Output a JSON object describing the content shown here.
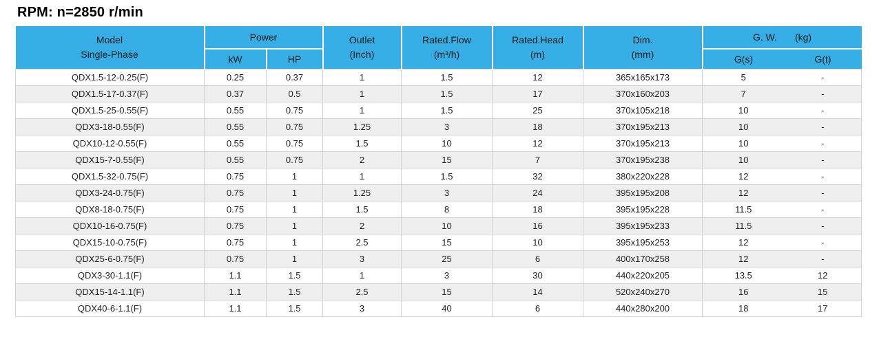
{
  "title": "RPM: n=2850 r/min",
  "colors": {
    "header_bg": "#36ade4",
    "header_text": "#1b1b1b",
    "row_alt": "#efefef",
    "grid_line": "#d2d2d2",
    "body_text": "#1f1f1f"
  },
  "table": {
    "col_keys": [
      "model",
      "kw",
      "hp",
      "outlet",
      "flow",
      "head",
      "dim",
      "gs",
      "gt"
    ],
    "headers": {
      "model_line1": "Model",
      "model_line2": "Single-Phase",
      "power": "Power",
      "kw": "kW",
      "hp": "HP",
      "outlet_line1": "Outlet",
      "outlet_line2": "(Inch)",
      "flow_line1": "Rated.Flow",
      "flow_line2": "(m³/h)",
      "head_line1": "Rated.Head",
      "head_line2": "(m)",
      "dim_line1": "Dim.",
      "dim_line2": "(mm)",
      "gw": "G. W.",
      "gw_unit": "(kg)",
      "gs": "G(s)",
      "gt": "G(t)"
    },
    "rows": [
      [
        "QDX1.5-12-0.25(F)",
        "0.25",
        "0.37",
        "1",
        "1.5",
        "12",
        "365x165x173",
        "5",
        "-"
      ],
      [
        "QDX1.5-17-0.37(F)",
        "0.37",
        "0.5",
        "1",
        "1.5",
        "17",
        "370x160x203",
        "7",
        "-"
      ],
      [
        "QDX1.5-25-0.55(F)",
        "0.55",
        "0.75",
        "1",
        "1.5",
        "25",
        "370x105x218",
        "10",
        "-"
      ],
      [
        "QDX3-18-0.55(F)",
        "0.55",
        "0.75",
        "1.25",
        "3",
        "18",
        "370x195x213",
        "10",
        "-"
      ],
      [
        "QDX10-12-0.55(F)",
        "0.55",
        "0.75",
        "1.5",
        "10",
        "12",
        "370x195x213",
        "10",
        "-"
      ],
      [
        "QDX15-7-0.55(F)",
        "0.55",
        "0.75",
        "2",
        "15",
        "7",
        "370x195x238",
        "10",
        "-"
      ],
      [
        "QDX1.5-32-0.75(F)",
        "0.75",
        "1",
        "1",
        "1.5",
        "32",
        "380x220x228",
        "12",
        "-"
      ],
      [
        "QDX3-24-0.75(F)",
        "0.75",
        "1",
        "1.25",
        "3",
        "24",
        "395x195x208",
        "12",
        "-"
      ],
      [
        "QDX8-18-0.75(F)",
        "0.75",
        "1",
        "1.5",
        "8",
        "18",
        "395x195x228",
        "11.5",
        "-"
      ],
      [
        "QDX10-16-0.75(F)",
        "0.75",
        "1",
        "2",
        "10",
        "16",
        "395x195x233",
        "11.5",
        "-"
      ],
      [
        "QDX15-10-0.75(F)",
        "0.75",
        "1",
        "2.5",
        "15",
        "10",
        "395x195x253",
        "12",
        "-"
      ],
      [
        "QDX25-6-0.75(F)",
        "0.75",
        "1",
        "3",
        "25",
        "6",
        "400x170x258",
        "12",
        "-"
      ],
      [
        "QDX3-30-1.1(F)",
        "1.1",
        "1.5",
        "1",
        "3",
        "30",
        "440x220x205",
        "13.5",
        "12"
      ],
      [
        "QDX15-14-1.1(F)",
        "1.1",
        "1.5",
        "2.5",
        "15",
        "14",
        "520x240x270",
        "16",
        "15"
      ],
      [
        "QDX40-6-1.1(F)",
        "1.1",
        "1.5",
        "3",
        "40",
        "6",
        "440x280x200",
        "18",
        "17"
      ]
    ]
  }
}
